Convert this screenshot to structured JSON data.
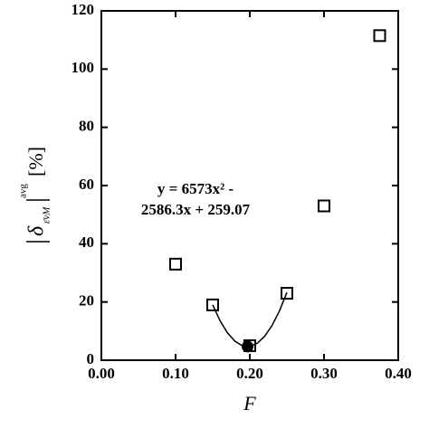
{
  "chart_data": {
    "type": "scatter",
    "xlabel": "F",
    "ylabel": {
      "symbol": "δ",
      "subscript": "ε̄vM",
      "superscript": "avg",
      "unit": "[%]"
    },
    "annotation": [
      "y = 6573x² -",
      "2586.3x + 259.07"
    ],
    "xlim": [
      0,
      0.4
    ],
    "xticks": [
      {
        "value": 0,
        "label": "0.00"
      },
      {
        "value": 0.1,
        "label": "0.10"
      },
      {
        "value": 0.2,
        "label": "0.20"
      },
      {
        "value": 0.3,
        "label": "0.30"
      },
      {
        "value": 0.4,
        "label": "0.40"
      }
    ],
    "ylim": [
      0,
      120
    ],
    "yticks": [
      0,
      20,
      40,
      60,
      80,
      100,
      120
    ],
    "series": [
      {
        "style": "square",
        "color": "#000000",
        "x": [
          0.1,
          0.15,
          0.2,
          0.25,
          0.3,
          0.375
        ],
        "values": [
          33,
          19,
          5,
          23,
          53,
          111.5
        ]
      },
      {
        "style": "circle",
        "color": "#000000",
        "x": [
          0.197
        ],
        "values": [
          4.7
        ]
      },
      {
        "style": "line",
        "color": "#000000",
        "x": [
          0.15,
          0.16,
          0.17,
          0.18,
          0.19,
          0.2,
          0.21,
          0.22,
          0.23,
          0.24,
          0.25
        ],
        "values": [
          19.02,
          13.53,
          9.36,
          6.51,
          4.96,
          4.73,
          5.82,
          8.21,
          11.93,
          16.96,
          23.3
        ]
      }
    ]
  }
}
